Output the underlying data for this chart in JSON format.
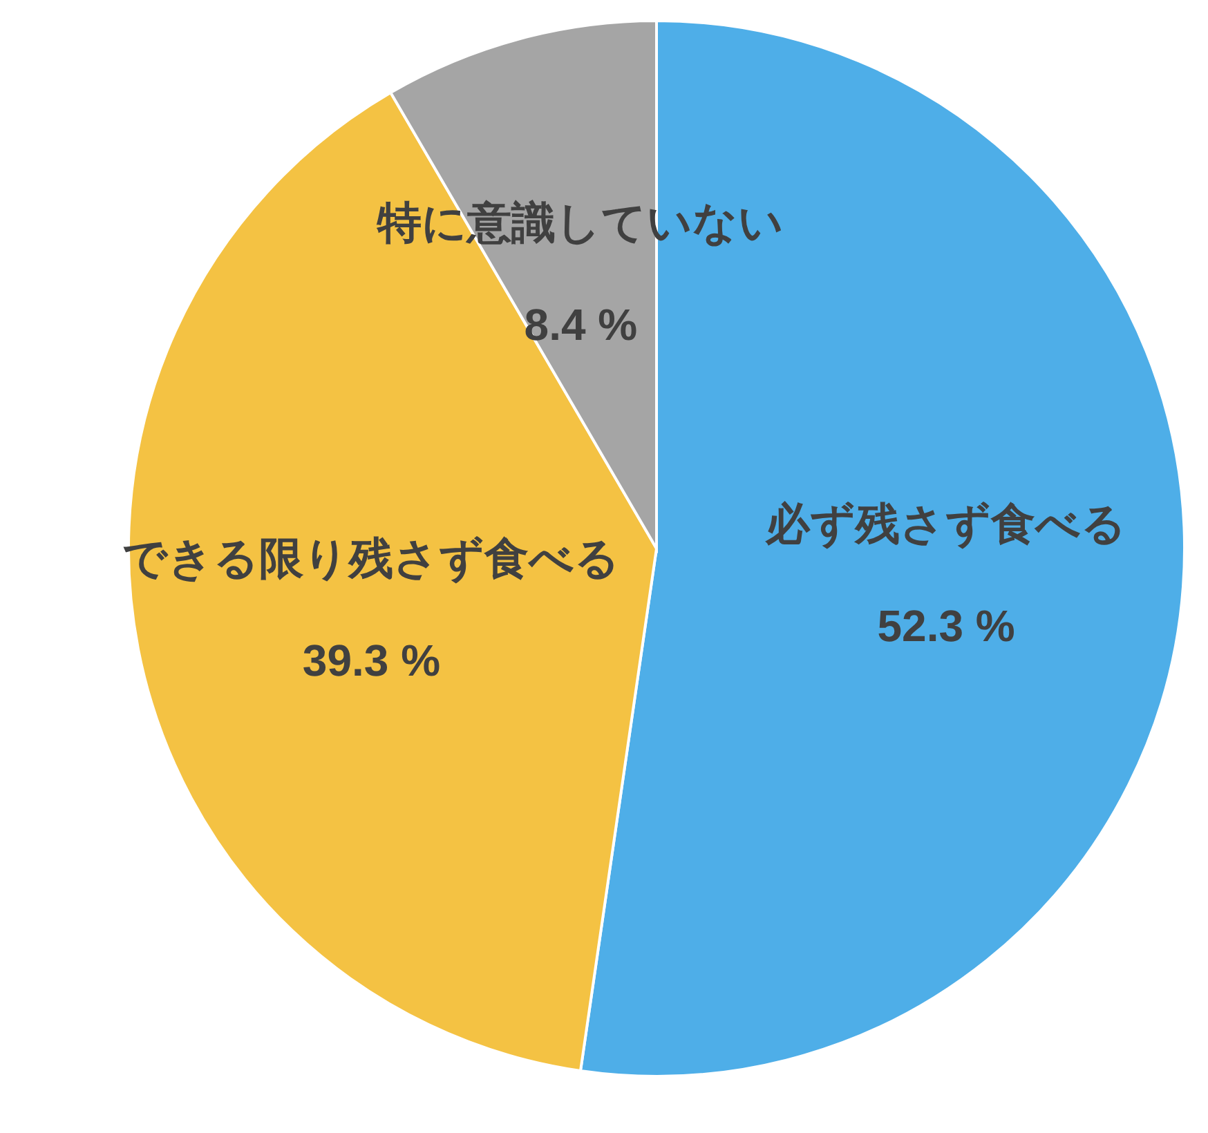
{
  "chart_data": {
    "type": "pie",
    "categories": [
      "必ず残さず食べる",
      "できる限り残さず食べる",
      "特に意識していない"
    ],
    "values": [
      52.3,
      39.3,
      8.4
    ],
    "colors": [
      "#4eaee8",
      "#f4c243",
      "#a5a5a5"
    ],
    "value_labels": [
      "52.3 %",
      "39.3 %",
      "8.4 %"
    ]
  }
}
